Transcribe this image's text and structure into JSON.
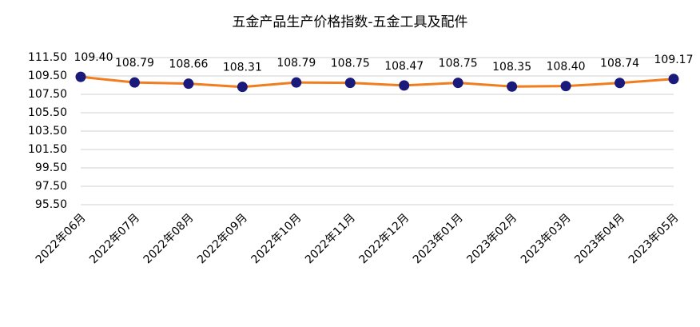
{
  "chart_data": {
    "type": "line",
    "title": "五金产品生产价格指数-五金工具及配件",
    "categories": [
      "2022年06月",
      "2022年07月",
      "2022年08月",
      "2022年09月",
      "2022年10月",
      "2022年11月",
      "2022年12月",
      "2023年01月",
      "2023年02月",
      "2023年03月",
      "2023年04月",
      "2023年05月"
    ],
    "series": [
      {
        "values": [
          109.4,
          108.79,
          108.66,
          108.31,
          108.79,
          108.75,
          108.47,
          108.75,
          108.35,
          108.4,
          108.74,
          109.17
        ],
        "value_labels": [
          "109.40",
          "108.79",
          "108.66",
          "108.31",
          "108.79",
          "108.75",
          "108.47",
          "108.75",
          "108.35",
          "108.40",
          "108.74",
          "109.17"
        ],
        "color": "#f07d1e",
        "marker_color": "#1a1a7a"
      }
    ],
    "ylim": [
      95.5,
      111.5
    ],
    "yticks": [
      {
        "value": 95.5,
        "label": "95.50"
      },
      {
        "value": 97.5,
        "label": "97.50"
      },
      {
        "value": 99.5,
        "label": "99.50"
      },
      {
        "value": 101.5,
        "label": "101.50"
      },
      {
        "value": 103.5,
        "label": "103.50"
      },
      {
        "value": 105.5,
        "label": "105.50"
      },
      {
        "value": 107.5,
        "label": "107.50"
      },
      {
        "value": 109.5,
        "label": "109.50"
      },
      {
        "value": 111.5,
        "label": "111.50"
      }
    ],
    "grid": true
  }
}
